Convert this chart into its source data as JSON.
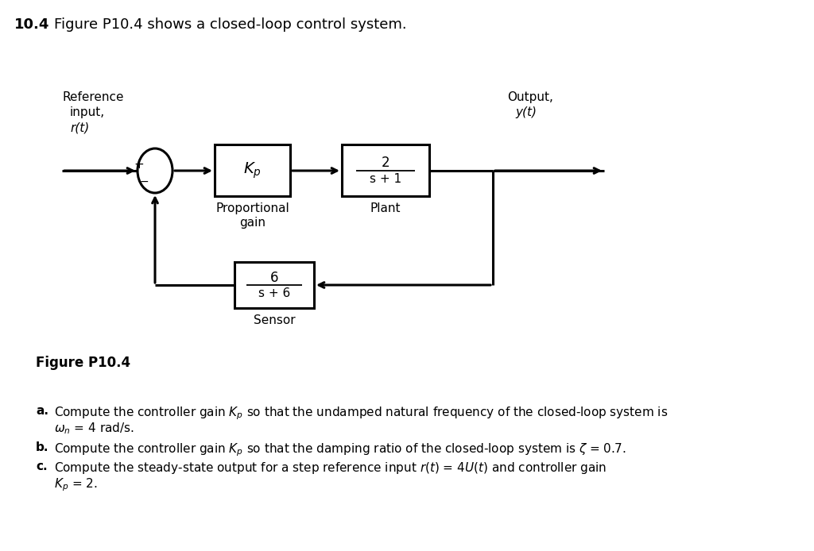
{
  "bg_color": "#ffffff",
  "line_color": "#000000",
  "title_num": "10.4",
  "title_text": "Figure P10.4 shows a closed-loop control system.",
  "fig_label": "Figure P10.4",
  "ref_line1": "Reference",
  "ref_line2": "input,",
  "ref_line3": "r(t)",
  "out_line1": "Output,",
  "out_line2": "y(t)",
  "kp_label": "$K_p$",
  "prop_line1": "Proportional",
  "prop_line2": "gain",
  "plant_num": "2",
  "plant_den": "s + 1",
  "plant_label": "Plant",
  "sensor_num": "6",
  "sensor_den": "s + 6",
  "sensor_label": "Sensor",
  "qa_bold": "a.",
  "qa_text1": "Compute the controller gain $K_p$ so that the undamped natural frequency of the closed-loop system is",
  "qa_text2": "$\\omega_n$ = 4 rad/s.",
  "qb_bold": "b.",
  "qb_text": "Compute the controller gain $K_p$ so that the damping ratio of the closed-loop system is $\\zeta$ = 0.7.",
  "qc_bold": "c.",
  "qc_text1": "Compute the steady-state output for a step reference input $r(t)$ = $4U(t)$ and controller gain",
  "qc_text2": "$K_p$ = 2."
}
